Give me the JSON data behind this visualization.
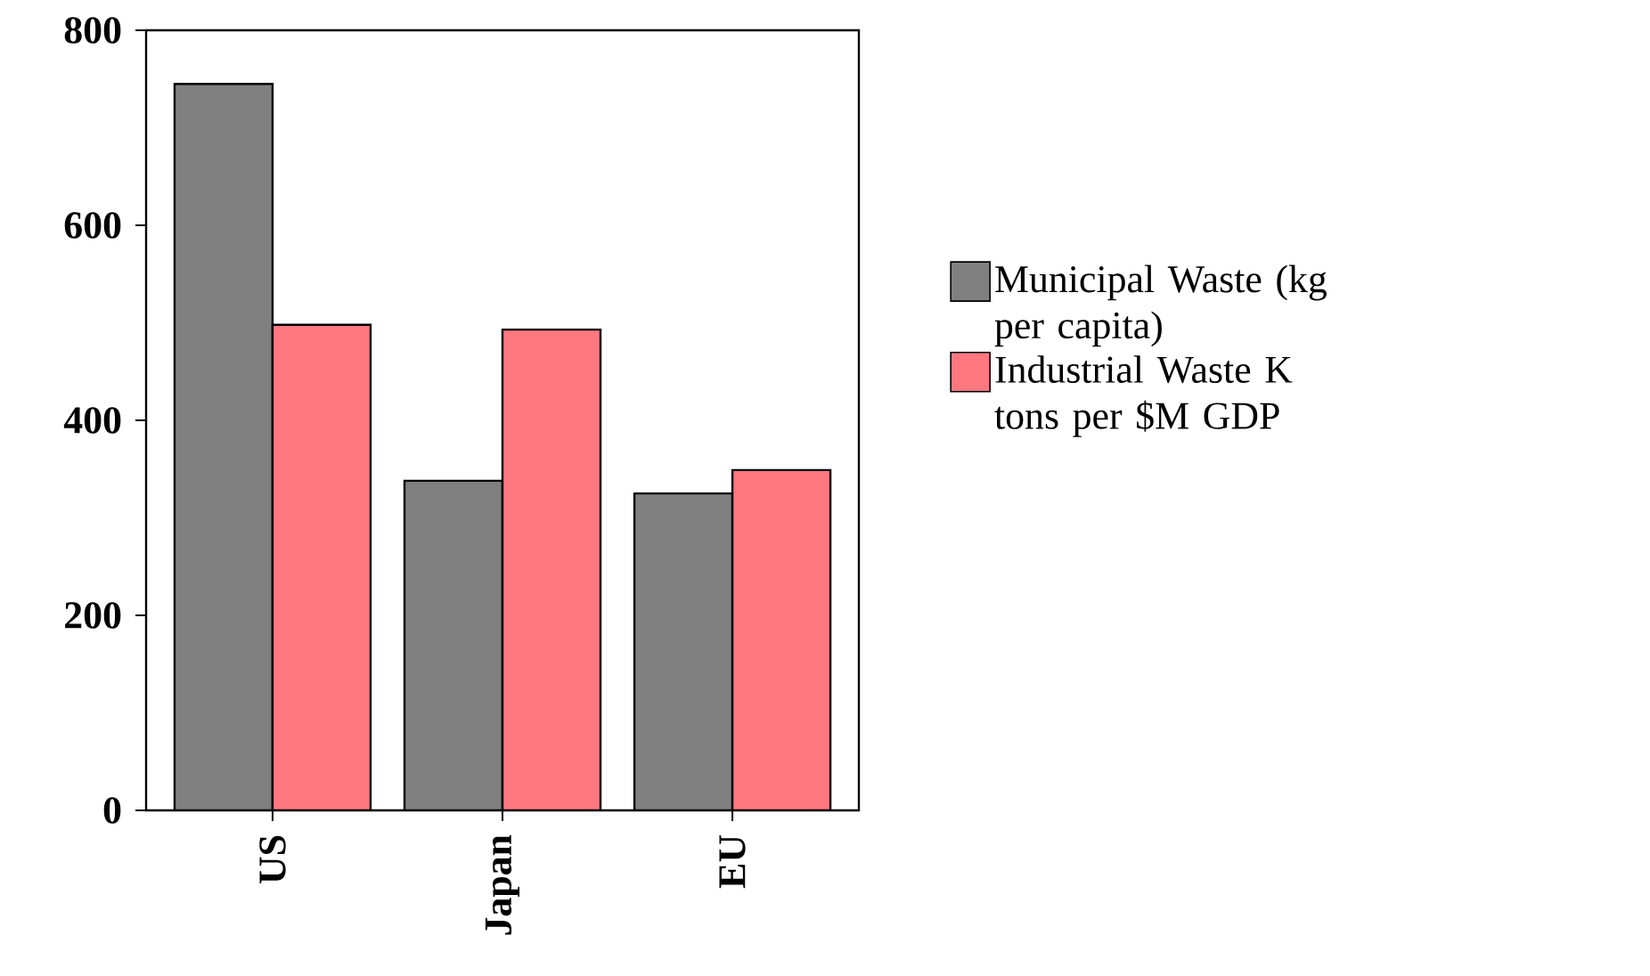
{
  "chart_data": {
    "type": "bar",
    "categories": [
      "US",
      "Japan",
      "EU"
    ],
    "series": [
      {
        "name": "Municipal Waste (kg per capita)",
        "color": "#808080",
        "values": [
          745,
          338,
          325
        ]
      },
      {
        "name": "Industrial Waste K tons per $M GDP",
        "color": "#ff7880",
        "values": [
          498,
          493,
          349
        ]
      }
    ],
    "ylim": [
      0,
      800
    ],
    "yticks": [
      0,
      200,
      400,
      600,
      800
    ],
    "grid": false,
    "legend": "right"
  }
}
